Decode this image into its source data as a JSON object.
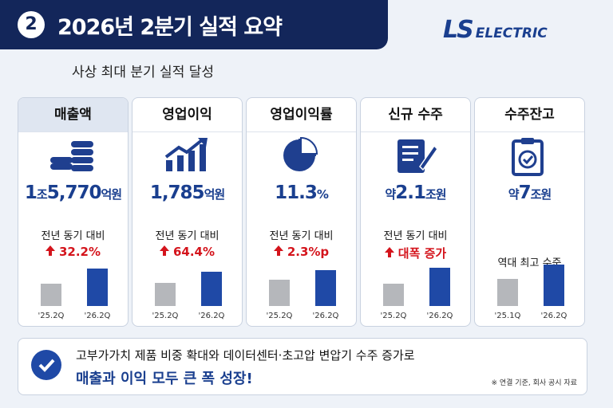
{
  "header": {
    "badge": "2",
    "title": "2026년 2분기 실적 요약",
    "logo_ls": "LS",
    "logo_electric": "ELECTRIC",
    "subtitle": "사상 최대 분기 실적 달성"
  },
  "cards": [
    {
      "title": "매출액",
      "value_parts": [
        "1",
        "조",
        "5,770",
        "억원"
      ],
      "compare": "전년 동기 대비",
      "change": "32.2%",
      "bar_labels": [
        "'25.2Q",
        "'26.2Q"
      ]
    },
    {
      "title": "영업이익",
      "value_parts": [
        "1,785",
        "억원"
      ],
      "compare": "전년 동기 대비",
      "change": "64.4%",
      "bar_labels": [
        "'25.2Q",
        "'26.2Q"
      ]
    },
    {
      "title": "영업이익률",
      "value_parts": [
        "11.3",
        "%"
      ],
      "compare": "전년 동기 대비",
      "change": "2.3%p",
      "bar_labels": [
        "'25.2Q",
        "'26.2Q"
      ]
    },
    {
      "title": "신규 수주",
      "value_parts": [
        "약",
        "2.1",
        "조원"
      ],
      "compare": "전년 동기 대비",
      "change": "대폭 증가",
      "bar_labels": [
        "'25.2Q",
        "'26.2Q"
      ]
    },
    {
      "title": "수주잔고",
      "value_parts": [
        "약",
        "7",
        "조원"
      ],
      "compare": "역대 최고 수준",
      "bar_labels": [
        "'25.1Q",
        "'26.2Q"
      ]
    }
  ],
  "footer": {
    "line1": "고부가가치 제품 비중 확대와 데이터센터·초고압 변압기 수주 증가로",
    "line2": "매출과 이익 모두 큰 폭 성장!",
    "note": "※ 연결 기준, 회사 공시 자료"
  }
}
